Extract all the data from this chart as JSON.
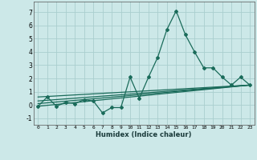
{
  "xlabel": "Humidex (Indice chaleur)",
  "bg_color": "#cce8e8",
  "grid_color": "#aacece",
  "line_color": "#1a6b5a",
  "xlim": [
    -0.5,
    23.5
  ],
  "ylim": [
    -1.5,
    7.8
  ],
  "xticks": [
    0,
    1,
    2,
    3,
    4,
    5,
    6,
    7,
    8,
    9,
    10,
    11,
    12,
    13,
    14,
    15,
    16,
    17,
    18,
    19,
    20,
    21,
    22,
    23
  ],
  "yticks": [
    -1,
    0,
    1,
    2,
    3,
    4,
    5,
    6,
    7
  ],
  "main_series": [
    [
      0,
      -0.1
    ],
    [
      1,
      0.6
    ],
    [
      2,
      -0.1
    ],
    [
      3,
      0.2
    ],
    [
      4,
      0.1
    ],
    [
      5,
      0.4
    ],
    [
      6,
      0.3
    ],
    [
      7,
      -0.6
    ],
    [
      8,
      -0.2
    ],
    [
      9,
      -0.2
    ],
    [
      10,
      2.1
    ],
    [
      11,
      0.5
    ],
    [
      12,
      2.1
    ],
    [
      13,
      3.6
    ],
    [
      14,
      5.7
    ],
    [
      15,
      7.1
    ],
    [
      16,
      5.3
    ],
    [
      17,
      4.0
    ],
    [
      18,
      2.8
    ],
    [
      19,
      2.8
    ],
    [
      20,
      2.1
    ],
    [
      21,
      1.5
    ],
    [
      22,
      2.1
    ],
    [
      23,
      1.5
    ]
  ],
  "trend_lines": [
    [
      [
        0,
        0.6
      ],
      [
        23,
        1.5
      ]
    ],
    [
      [
        0,
        0.3
      ],
      [
        23,
        1.5
      ]
    ],
    [
      [
        0,
        0.1
      ],
      [
        23,
        1.5
      ]
    ],
    [
      [
        0,
        -0.1
      ],
      [
        23,
        1.5
      ]
    ]
  ]
}
